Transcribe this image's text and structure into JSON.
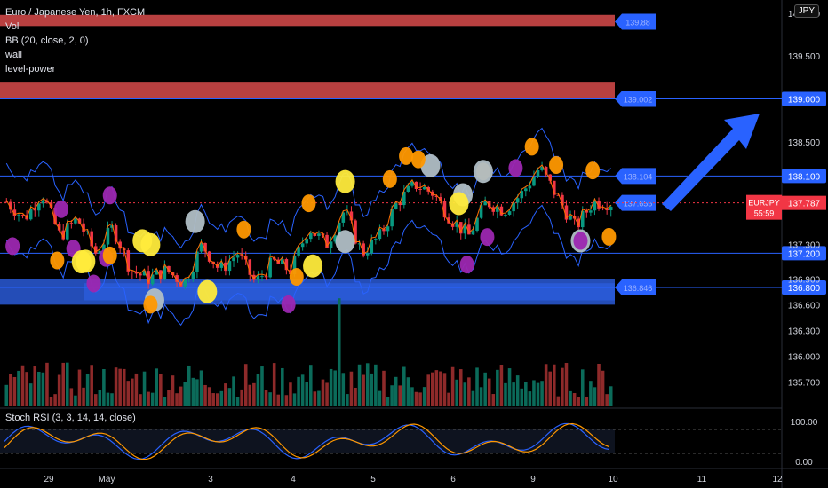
{
  "header": {
    "title": "Euro / Japanese Yen, 1h, FXCM",
    "indicators": [
      "Vol",
      "BB (20, close, 2, 0)",
      "wall",
      "level-power"
    ],
    "currency_button": "JPY"
  },
  "price_axis": {
    "ticks": [
      "140.000",
      "139.500",
      "139.000",
      "138.500",
      "138.100",
      "137.787",
      "137.300",
      "136.900",
      "136.800",
      "136.600",
      "136.300",
      "136.000",
      "135.700"
    ],
    "ticks_values": [
      140.0,
      139.5,
      139.0,
      138.5,
      138.1,
      137.787,
      137.3,
      136.9,
      136.8,
      136.6,
      136.3,
      136.0,
      135.7
    ]
  },
  "symbol_tag": {
    "symbol": "EURJPY",
    "price": "137.787",
    "countdown": "55:59",
    "color": "#f23645"
  },
  "levels": [
    {
      "price": 139.0,
      "label": "139.000",
      "tag": "139.002"
    },
    {
      "price": 138.1,
      "label": "138.100",
      "tag": "138.104"
    },
    {
      "price": 137.2,
      "label": "137.200",
      "tag": ""
    },
    {
      "price": 136.8,
      "label": "136.800",
      "tag": "136.846"
    }
  ],
  "extra_tags": [
    {
      "price": 139.9,
      "tag": "139.88"
    },
    {
      "price": 137.787,
      "tag": "137.655"
    }
  ],
  "time_axis": {
    "labels": [
      "29",
      "May",
      "3",
      "4",
      "5",
      "6",
      "9",
      "10",
      "11",
      "12"
    ]
  },
  "stoch": {
    "title": "Stoch RSI (3, 3, 14, 14, close)",
    "ticks": [
      "100.00",
      "0.00"
    ]
  },
  "chart_data": {
    "type": "candlestick",
    "title": "Euro / Japanese Yen, 1h, FXCM",
    "symbol": "EURJPY",
    "ylim": [
      135.6,
      140.05
    ],
    "last_price": 137.787,
    "x_labels": [
      "29",
      "May",
      "3",
      "4",
      "5",
      "6",
      "9",
      "10",
      "11",
      "12"
    ],
    "close_path": [
      137.8,
      137.6,
      137.9,
      137.4,
      137.6,
      137.2,
      137.5,
      137.0,
      136.9,
      137.0,
      136.85,
      137.3,
      137.0,
      137.2,
      136.85,
      137.1,
      137.0,
      137.5,
      137.3,
      137.7,
      137.2,
      137.4,
      137.8,
      138.0,
      137.9,
      137.6,
      137.4,
      137.8,
      137.7,
      137.9,
      138.2,
      137.85,
      137.5,
      137.8,
      137.787
    ],
    "ranges": {
      "low": 136.6,
      "high": 138.4
    },
    "annotations": [
      {
        "type": "box",
        "price_from": 139.85,
        "price_to": 139.98,
        "label": "139.88",
        "color": "#d84b4b"
      },
      {
        "type": "box",
        "price_from": 139.0,
        "price_to": 139.2,
        "label": "139.002",
        "color": "#d84b4b"
      },
      {
        "type": "box",
        "price_from": 136.6,
        "price_to": 136.9,
        "label": "136.846",
        "color": "#2a5bd7"
      },
      {
        "type": "arrow",
        "direction": "up",
        "color": "#2962ff"
      }
    ]
  }
}
